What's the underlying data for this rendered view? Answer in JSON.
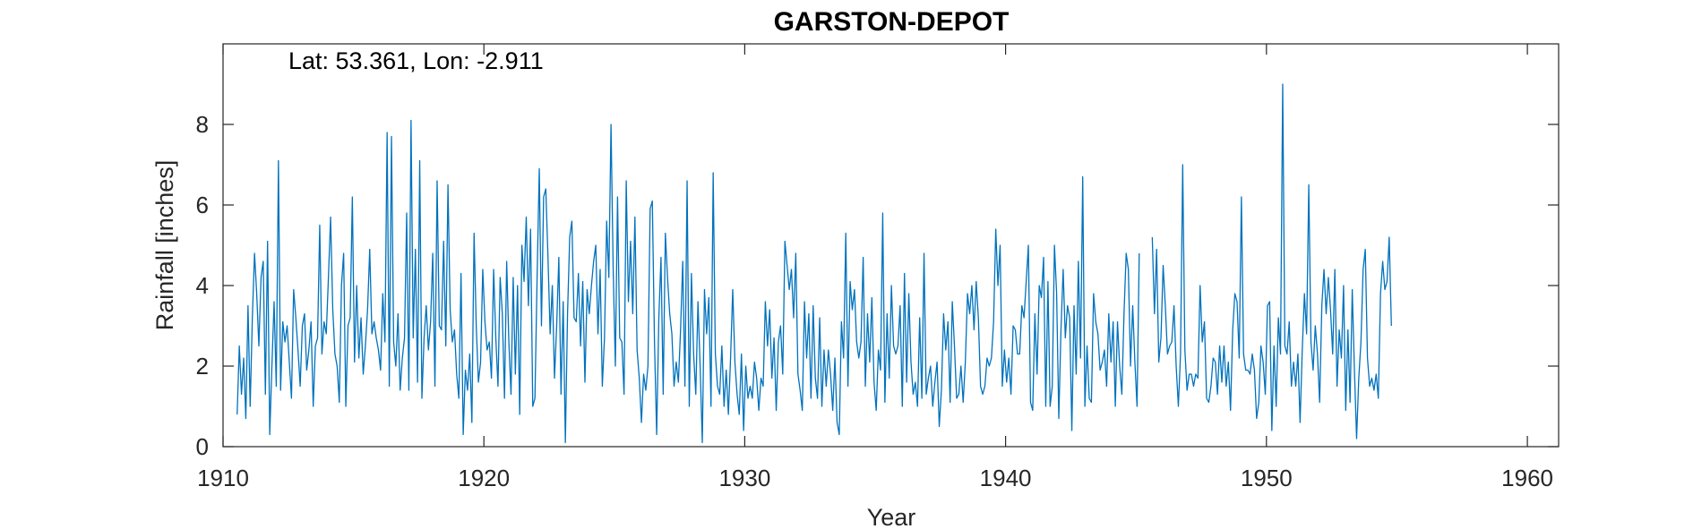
{
  "chart_data": {
    "type": "line",
    "title": "GARSTON-DEPOT",
    "xlabel": "Year",
    "ylabel": "Rainfall [inches]",
    "annotation": "Lat: 53.361, Lon: -2.911",
    "xlim": [
      1910,
      1961.2
    ],
    "ylim": [
      0,
      10
    ],
    "xticks": [
      1910,
      1920,
      1930,
      1940,
      1950,
      1960
    ],
    "yticks": [
      0,
      2,
      4,
      6,
      8
    ],
    "grid": false,
    "line_color": "#0072BD",
    "series": [
      {
        "x_start": 1910.54,
        "x_step": 0.08333,
        "gaps": [
          [
            1945.17,
            1945.62
          ]
        ],
        "values": [
          0.8,
          2.5,
          1.3,
          2.2,
          0.7,
          3.5,
          1.0,
          3.2,
          4.8,
          3.8,
          2.5,
          4.2,
          4.6,
          1.3,
          5.1,
          0.3,
          2.0,
          3.6,
          1.5,
          7.1,
          1.4,
          3.1,
          2.6,
          3.0,
          2.1,
          1.2,
          3.9,
          3.2,
          2.4,
          1.5,
          3.0,
          3.3,
          1.9,
          2.4,
          3.1,
          1.0,
          2.5,
          2.7,
          5.5,
          2.3,
          3.1,
          2.8,
          4.2,
          5.7,
          3.4,
          2.3,
          2.0,
          1.1,
          4.0,
          4.8,
          1.0,
          3.0,
          3.2,
          6.2,
          2.1,
          4.0,
          2.2,
          3.2,
          1.8,
          2.5,
          3.4,
          4.9,
          2.8,
          3.1,
          2.7,
          2.4,
          1.9,
          3.8,
          2.6,
          7.8,
          1.5,
          7.7,
          2.6,
          2.0,
          3.3,
          1.4,
          2.2,
          2.7,
          5.8,
          1.4,
          8.1,
          2.7,
          4.9,
          1.6,
          7.1,
          1.2,
          2.7,
          3.5,
          2.4,
          3.1,
          4.8,
          1.5,
          6.6,
          3.0,
          2.9,
          5.1,
          2.5,
          6.5,
          3.4,
          2.6,
          2.9,
          1.8,
          1.2,
          4.3,
          0.3,
          1.9,
          1.4,
          2.3,
          0.6,
          5.3,
          3.0,
          1.6,
          2.1,
          4.4,
          3.1,
          2.4,
          2.6,
          1.7,
          4.4,
          2.7,
          1.5,
          4.2,
          3.3,
          1.2,
          4.6,
          2.6,
          1.3,
          4.2,
          1.8,
          4.0,
          0.8,
          5.0,
          4.1,
          5.7,
          3.5,
          5.4,
          1.0,
          1.2,
          4.2,
          6.9,
          3.0,
          6.2,
          6.4,
          4.7,
          2.8,
          4.0,
          1.7,
          3.0,
          4.7,
          1.3,
          3.6,
          0.1,
          3.3,
          5.2,
          5.6,
          3.2,
          3.1,
          4.3,
          2.5,
          4.1,
          1.6,
          3.9,
          3.3,
          4.0,
          4.6,
          5.0,
          2.8,
          4.4,
          1.5,
          2.7,
          5.6,
          4.2,
          8.0,
          4.4,
          2.0,
          6.2,
          2.7,
          2.6,
          1.3,
          6.6,
          3.6,
          5.1,
          3.3,
          5.7,
          2.4,
          1.7,
          0.6,
          1.8,
          1.4,
          2.0,
          5.9,
          6.1,
          2.6,
          0.3,
          3.2,
          4.7,
          1.3,
          5.3,
          4.2,
          3.3,
          2.8,
          1.5,
          2.1,
          1.6,
          2.9,
          4.6,
          1.5,
          6.6,
          1.0,
          4.3,
          2.3,
          1.3,
          3.6,
          2.0,
          0.1,
          3.9,
          2.8,
          3.7,
          1.0,
          6.8,
          2.3,
          1.5,
          1.3,
          2.5,
          1.0,
          1.9,
          0.8,
          2.2,
          3.9,
          2.1,
          1.3,
          0.8,
          2.3,
          0.4,
          2.0,
          1.2,
          1.5,
          1.2,
          2.1,
          1.7,
          0.9,
          1.7,
          1.5,
          3.6,
          2.5,
          3.4,
          1.7,
          2.7,
          0.9,
          2.6,
          3.0,
          1.8,
          5.1,
          4.5,
          3.9,
          4.4,
          3.2,
          4.8,
          1.8,
          1.4,
          0.9,
          3.6,
          2.2,
          3.3,
          1.2,
          3.5,
          1.7,
          1.2,
          3.2,
          1.0,
          2.4,
          1.5,
          2.4,
          1.8,
          0.9,
          2.2,
          0.6,
          0.3,
          3.1,
          2.2,
          5.3,
          1.5,
          4.1,
          3.4,
          3.9,
          2.6,
          2.2,
          2.6,
          4.7,
          1.5,
          3.3,
          2.1,
          3.7,
          1.6,
          0.9,
          2.4,
          1.9,
          5.8,
          1.1,
          3.3,
          1.7,
          4.0,
          2.5,
          2.3,
          2.5,
          3.5,
          1.0,
          4.3,
          1.6,
          3.8,
          2.1,
          1.3,
          1.6,
          1.0,
          3.2,
          1.2,
          4.8,
          1.3,
          1.7,
          2.0,
          1.0,
          1.6,
          2.1,
          0.5,
          1.4,
          3.3,
          2.4,
          3.1,
          1.1,
          3.6,
          2.5,
          1.2,
          1.3,
          2.0,
          1.1,
          2.1,
          3.8,
          3.3,
          4.0,
          2.9,
          4.1,
          3.2,
          1.5,
          1.3,
          1.5,
          2.2,
          2.0,
          2.2,
          3.1,
          5.4,
          4.0,
          5.0,
          1.5,
          2.4,
          1.6,
          2.2,
          1.3,
          3.0,
          2.9,
          2.3,
          2.3,
          3.5,
          3.2,
          4.1,
          5.0,
          1.1,
          0.9,
          3.3,
          1.8,
          4.0,
          3.7,
          4.7,
          1.0,
          4.1,
          1.0,
          1.5,
          5.0,
          3.8,
          0.7,
          2.9,
          4.4,
          2.7,
          3.5,
          3.2,
          0.4,
          3.5,
          1.8,
          4.6,
          2.2,
          6.7,
          1.0,
          2.5,
          1.2,
          1.1,
          3.8,
          3.1,
          2.8,
          1.9,
          2.1,
          2.4,
          1.5,
          3.3,
          2.1,
          3.1,
          1.0,
          3.1,
          2.0,
          1.3,
          3.3,
          4.8,
          4.4,
          2.0,
          3.5,
          2.1,
          1.0,
          4.8,
          5.2,
          3.3,
          4.9,
          2.1,
          2.7,
          4.5,
          3.5,
          2.3,
          2.5,
          2.6,
          3.5,
          2.0,
          1.0,
          2.3,
          7.0,
          2.4,
          1.4,
          1.8,
          1.8,
          1.5,
          1.8,
          1.7,
          4.0,
          2.6,
          3.1,
          1.2,
          1.1,
          1.5,
          2.2,
          2.1,
          1.3,
          2.5,
          1.6,
          2.5,
          1.5,
          2.1,
          0.9,
          2.9,
          3.8,
          3.6,
          2.2,
          6.2,
          2.3,
          1.9,
          1.9,
          1.8,
          2.3,
          1.9,
          0.7,
          1.1,
          2.5,
          2.1,
          1.3,
          3.5,
          3.6,
          0.4,
          2.5,
          1.0,
          3.2,
          2.3,
          9.0,
          2.5,
          2.3,
          3.1,
          1.5,
          2.1,
          1.5,
          2.3,
          0.6,
          2.4,
          3.8,
          2.8,
          6.5,
          2.6,
          1.9,
          3.0,
          2.3,
          1.1,
          3.5,
          4.4,
          3.3,
          4.2,
          3.4,
          2.3,
          4.4,
          1.5,
          2.9,
          2.2,
          4.0,
          0.9,
          2.9,
          1.1,
          3.9,
          1.9,
          0.2,
          1.7,
          2.6,
          4.4,
          4.9,
          2.2,
          1.5,
          1.7,
          1.4,
          1.8,
          1.2,
          3.8,
          4.6,
          3.9,
          4.1,
          5.2,
          3.0
        ]
      }
    ]
  }
}
